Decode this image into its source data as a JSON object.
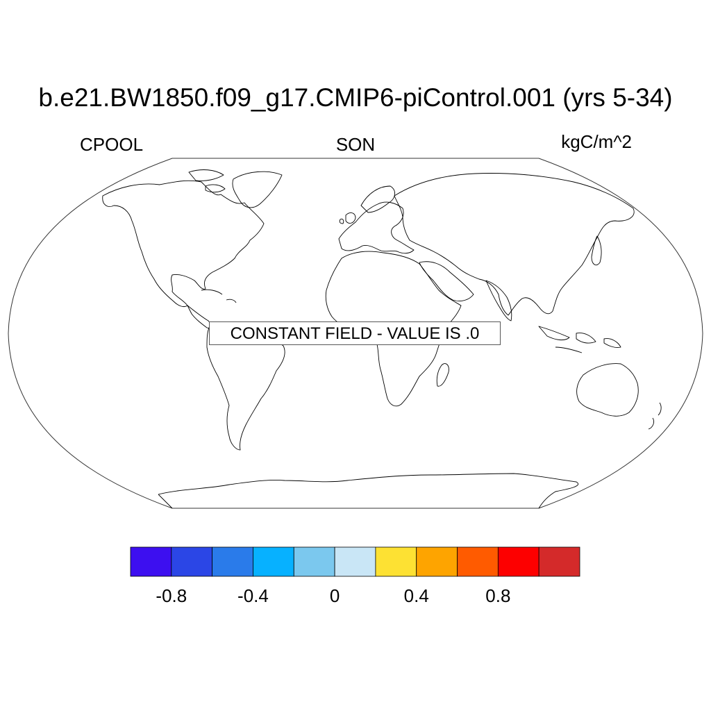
{
  "title": "b.e21.BW1850.f09_g17.CMIP6-piControl.001 (yrs 5-34)",
  "subtitle_left": "CPOOL",
  "subtitle_center": "SON",
  "subtitle_right": "kgC/m^2",
  "map": {
    "projection": "robinson",
    "message": "CONSTANT FIELD - VALUE IS .0",
    "outline_color": "#000000"
  },
  "colorbar": {
    "colors": [
      "#3d0ff0",
      "#2b46e6",
      "#2a7bea",
      "#07b1ff",
      "#7bc8ee",
      "#c9e6f6",
      "#fde133",
      "#fea400",
      "#ff5b00",
      "#fd0000",
      "#d42a2a"
    ],
    "tick_labels": [
      "-0.8",
      "-0.4",
      "0",
      "0.4",
      "0.8"
    ],
    "tick_values": [
      -0.8,
      -0.4,
      0,
      0.4,
      0.8
    ],
    "boundaries": [
      -1.0,
      -0.8,
      -0.6,
      -0.4,
      -0.2,
      0,
      0.2,
      0.4,
      0.6,
      0.8,
      1.0
    ]
  }
}
